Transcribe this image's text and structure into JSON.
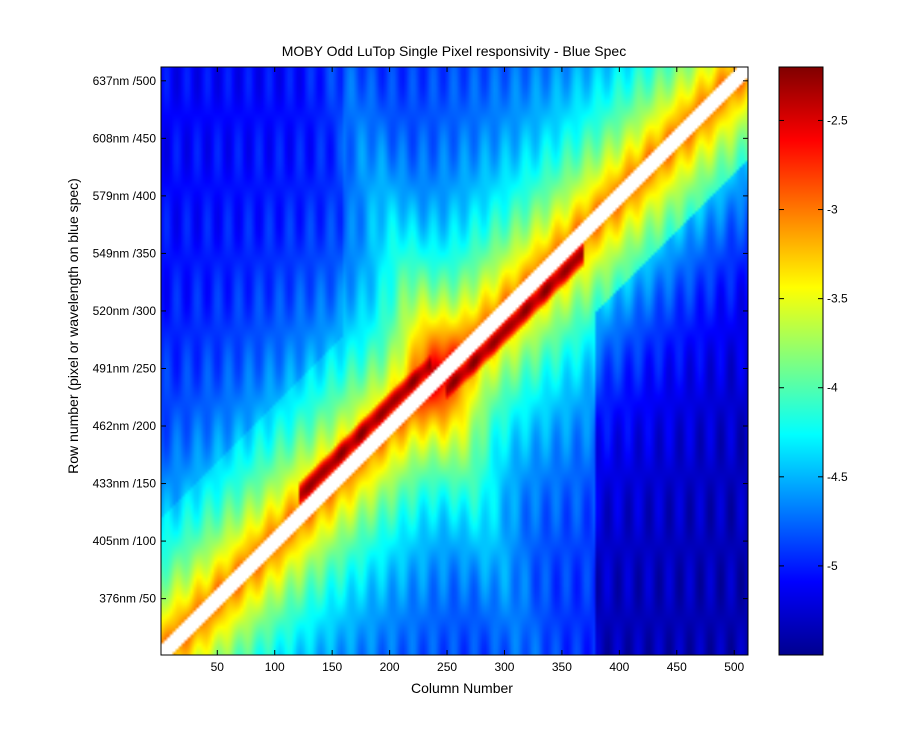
{
  "chart_data": {
    "type": "heatmap",
    "title": "MOBY Odd LuTop Single Pixel responsivity - Blue Spec",
    "xlabel": "Column Number",
    "ylabel": "Row number (pixel or wavelength on blue spec)",
    "xlim": [
      1,
      512
    ],
    "ylim": [
      1,
      512
    ],
    "x_ticks": [
      50,
      100,
      150,
      200,
      250,
      300,
      350,
      400,
      450,
      500
    ],
    "x_tick_labels": [
      "50",
      "100",
      "150",
      "200",
      "250",
      "300",
      "350",
      "400",
      "450",
      "500"
    ],
    "y_ticks": [
      50,
      100,
      150,
      200,
      250,
      300,
      350,
      400,
      450,
      500
    ],
    "y_tick_labels": [
      "376nm /50",
      "405nm /100",
      "433nm /150",
      "462nm /200",
      "491nm /250",
      "520nm /300",
      "549nm /350",
      "579nm /400",
      "608nm /450",
      "637nm /500"
    ],
    "colorbar": {
      "colormap": "jet",
      "clim": [
        -5.5,
        -2.2
      ],
      "ticks": [
        -2.5,
        -3,
        -3.5,
        -4,
        -4.5,
        -5
      ],
      "tick_labels": [
        "-2.5",
        "-3",
        "-3.5",
        "-4",
        "-4.5",
        "-5"
      ]
    },
    "features": {
      "diagonal_gap": "white band along row = column (no data)",
      "main_diagonal_value_range": [
        -3.2,
        -3.0
      ],
      "peak_ridge_value": -2.3,
      "background_value_range": [
        -5.2,
        -4.2
      ]
    }
  }
}
